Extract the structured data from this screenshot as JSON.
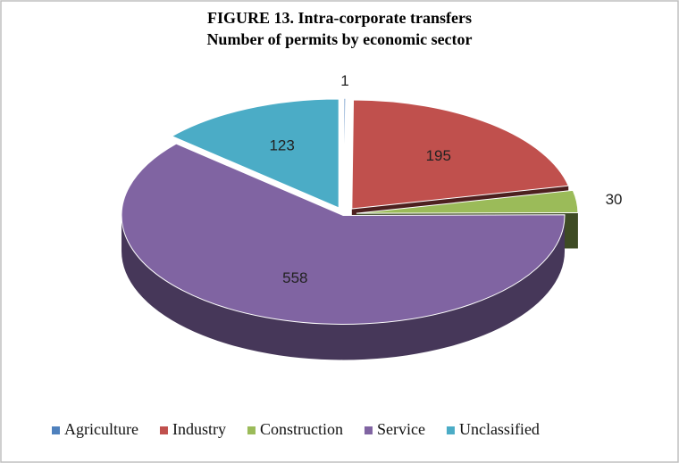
{
  "chart_data": {
    "type": "pie",
    "title": "FIGURE 13. Intra-corporate transfers",
    "subtitle": "Number of permits by economic sector",
    "categories": [
      "Agriculture",
      "Industry",
      "Construction",
      "Service",
      "Unclassified"
    ],
    "values": [
      1,
      195,
      30,
      558,
      123
    ],
    "colors": [
      "#4f81bd",
      "#c0504d",
      "#9bbb59",
      "#8064a2",
      "#4bacc6"
    ],
    "legend": "bottom"
  }
}
